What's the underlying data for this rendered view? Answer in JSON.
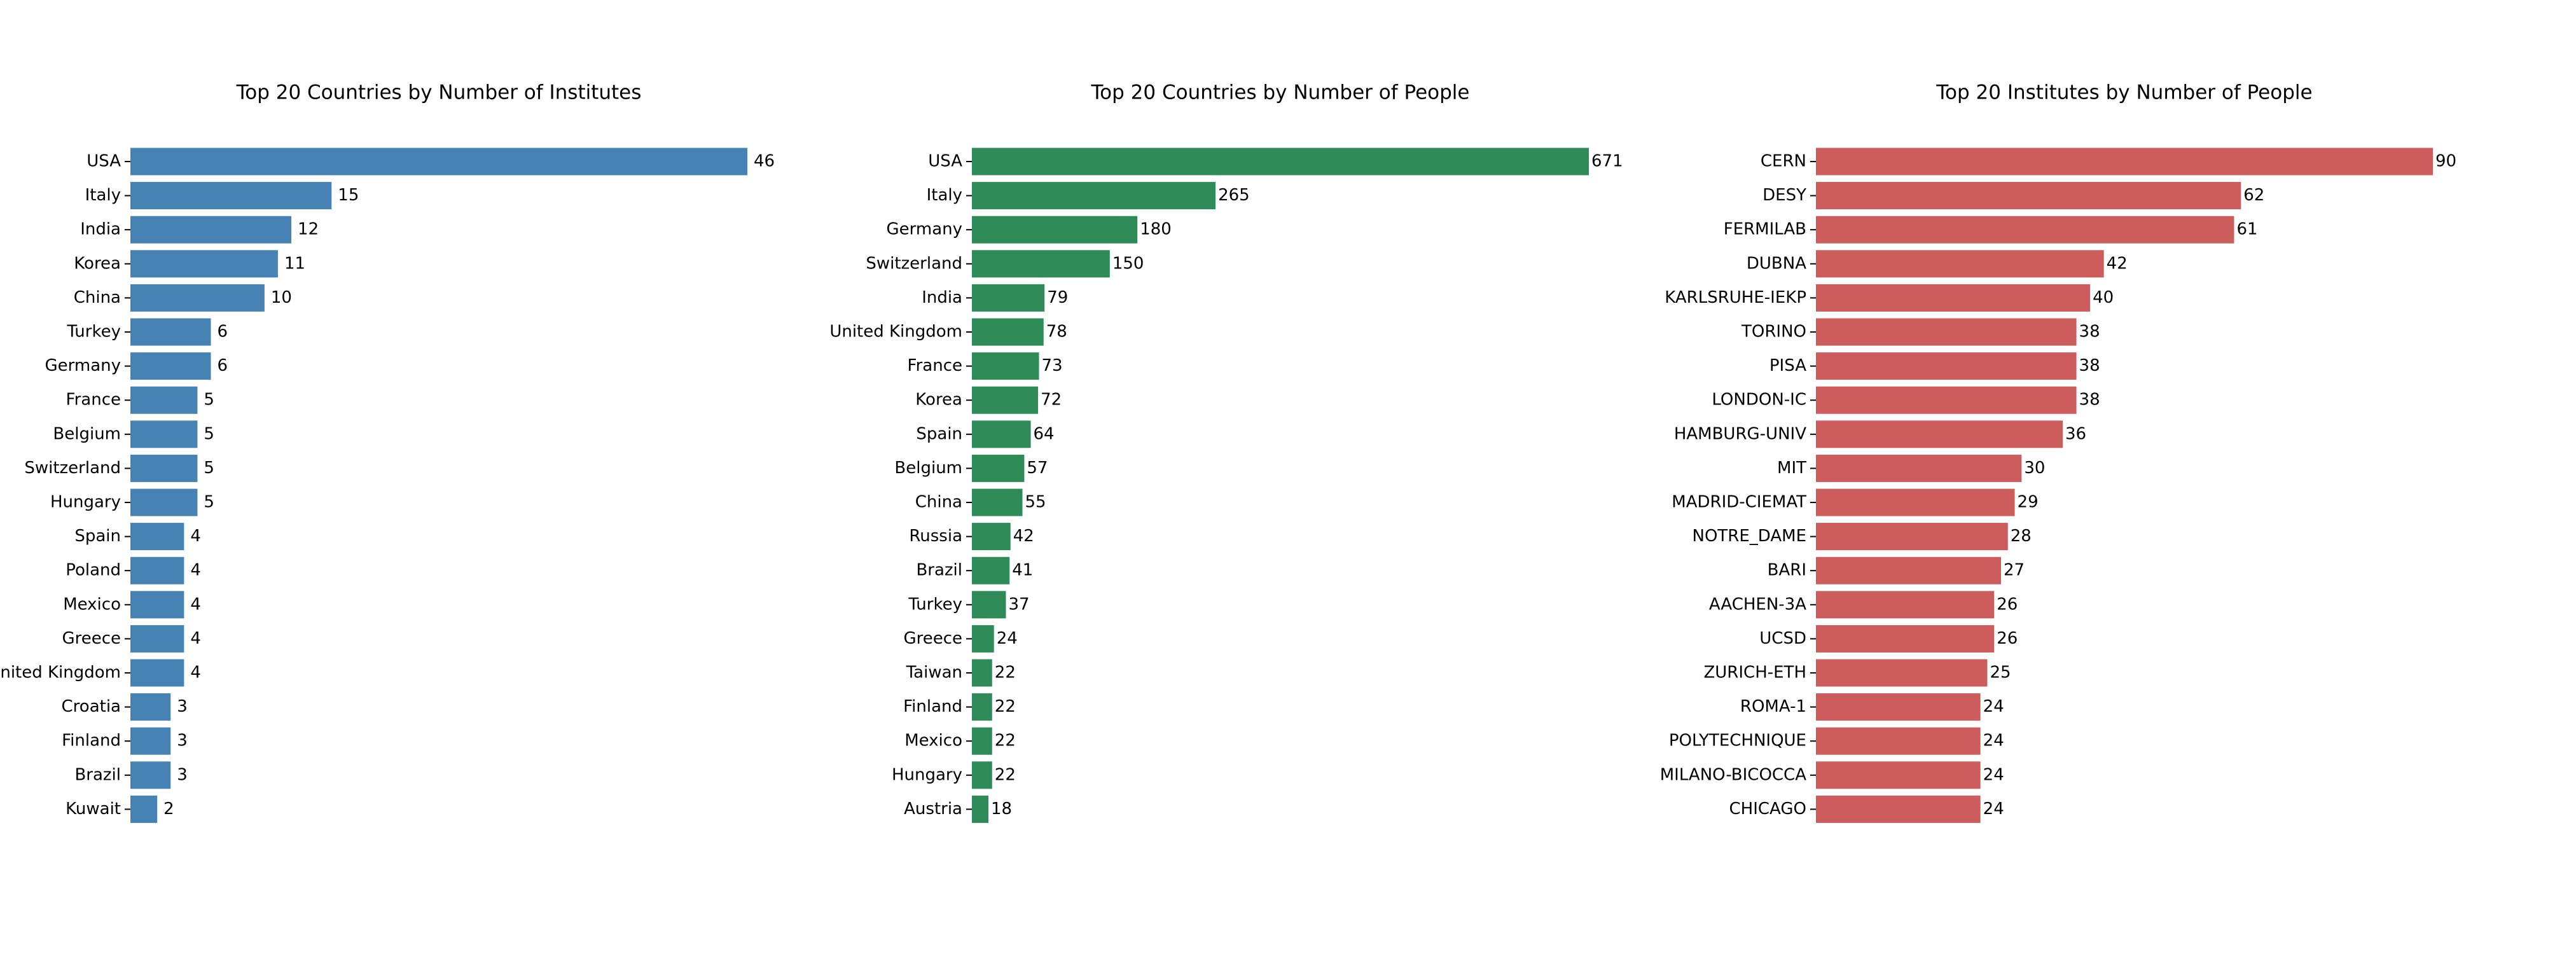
{
  "chart_data": [
    {
      "type": "bar",
      "orientation": "horizontal",
      "title": "Top 20 Countries by Number of Institutes",
      "xlabel": "",
      "ylabel": "",
      "color": "#4682b4",
      "xlim": [
        0,
        46
      ],
      "grid": false,
      "categories": [
        "USA",
        "Italy",
        "India",
        "Korea",
        "China",
        "Turkey",
        "Germany",
        "France",
        "Belgium",
        "Switzerland",
        "Hungary",
        "Spain",
        "Poland",
        "Mexico",
        "Greece",
        "United Kingdom",
        "Croatia",
        "Finland",
        "Brazil",
        "Kuwait"
      ],
      "values": [
        46,
        15,
        12,
        11,
        10,
        6,
        6,
        5,
        5,
        5,
        5,
        4,
        4,
        4,
        4,
        4,
        3,
        3,
        3,
        2
      ]
    },
    {
      "type": "bar",
      "orientation": "horizontal",
      "title": "Top 20 Countries by Number of People",
      "xlabel": "",
      "ylabel": "",
      "color": "#2e8b57",
      "xlim": [
        0,
        671
      ],
      "grid": false,
      "categories": [
        "USA",
        "Italy",
        "Germany",
        "Switzerland",
        "India",
        "United Kingdom",
        "France",
        "Korea",
        "Spain",
        "Belgium",
        "China",
        "Russia",
        "Brazil",
        "Turkey",
        "Greece",
        "Taiwan",
        "Finland",
        "Mexico",
        "Hungary",
        "Austria"
      ],
      "values": [
        671,
        265,
        180,
        150,
        79,
        78,
        73,
        72,
        64,
        57,
        55,
        42,
        41,
        37,
        24,
        22,
        22,
        22,
        22,
        18
      ]
    },
    {
      "type": "bar",
      "orientation": "horizontal",
      "title": "Top 20 Institutes by Number of People",
      "xlabel": "",
      "ylabel": "",
      "color": "#cd5c5c",
      "xlim": [
        0,
        90
      ],
      "grid": false,
      "categories": [
        "CERN",
        "DESY",
        "FERMILAB",
        "DUBNA",
        "KARLSRUHE-IEKP",
        "TORINO",
        "PISA",
        "LONDON-IC",
        "HAMBURG-UNIV",
        "MIT",
        "MADRID-CIEMAT",
        "NOTRE_DAME",
        "BARI",
        "AACHEN-3A",
        "UCSD",
        "ZURICH-ETH",
        "ROMA-1",
        "POLYTECHNIQUE",
        "MILANO-BICOCCA",
        "CHICAGO"
      ],
      "values": [
        90,
        62,
        61,
        42,
        40,
        38,
        38,
        38,
        36,
        30,
        29,
        28,
        27,
        26,
        26,
        25,
        24,
        24,
        24,
        24
      ]
    }
  ]
}
